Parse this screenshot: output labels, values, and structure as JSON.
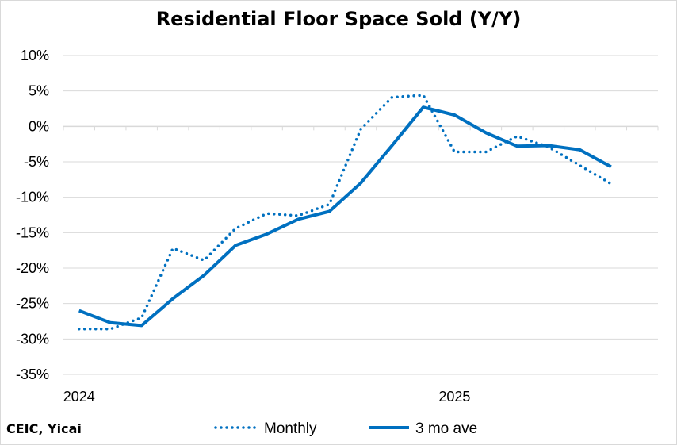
{
  "chart_data": {
    "type": "line",
    "title": "Residential Floor Space Sold (Y/Y)",
    "source": "CEIC, Yicai",
    "ylim": [
      -35,
      10
    ],
    "yticks": [
      10,
      5,
      0,
      -5,
      -10,
      -15,
      -20,
      -25,
      -30,
      -35
    ],
    "ytick_labels": [
      "10%",
      "5%",
      "0%",
      "-5%",
      "-10%",
      "-15%",
      "-20%",
      "-25%",
      "-30%",
      "-35%"
    ],
    "x_labels": [
      {
        "label": "2024",
        "index": 0
      },
      {
        "label": "2025",
        "index": 12
      }
    ],
    "x": [
      "2024-01",
      "2024-02",
      "2024-03",
      "2024-04",
      "2024-05",
      "2024-06",
      "2024-07",
      "2024-08",
      "2024-09",
      "2024-10",
      "2024-11",
      "2024-12",
      "2025-01",
      "2025-02",
      "2025-03",
      "2025-04",
      "2025-05",
      "2025-06",
      "2025-07"
    ],
    "series": [
      {
        "name": "Monthly",
        "style": "dotted",
        "color": "#0070C0",
        "values": [
          -28.6,
          -28.6,
          -27.0,
          -17.2,
          -18.9,
          -14.4,
          -12.3,
          -12.6,
          -11.0,
          -0.4,
          4.1,
          4.4,
          -3.6,
          -3.6,
          -1.4,
          -2.9,
          -5.5,
          -8.1,
          null
        ]
      },
      {
        "name": "3 mo ave",
        "style": "solid",
        "color": "#0070C0",
        "values": [
          -26.0,
          -27.7,
          -28.1,
          -24.3,
          -21.0,
          -16.8,
          -15.2,
          -13.1,
          -12.0,
          -8.0,
          -2.7,
          2.7,
          1.6,
          -0.9,
          -2.8,
          -2.7,
          -3.3,
          -5.7,
          null
        ]
      }
    ],
    "legend_position": "bottom",
    "grid": true
  }
}
